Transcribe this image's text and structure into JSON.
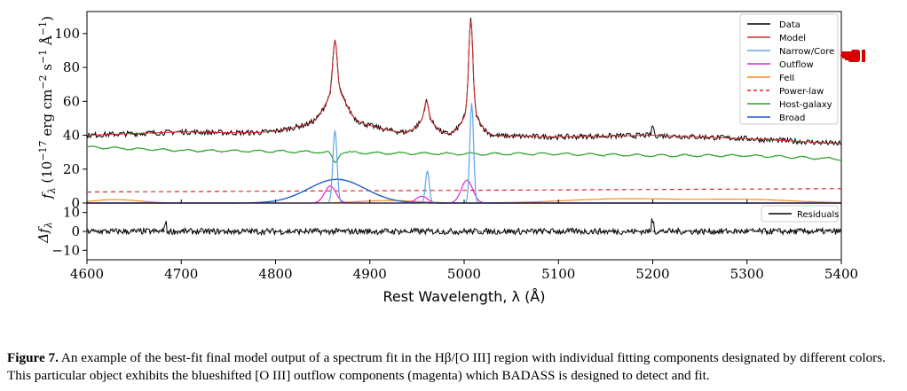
{
  "chart_data": [
    {
      "type": "line",
      "panel": "main",
      "xlim": [
        4600,
        5400
      ],
      "ylim": [
        0,
        113
      ],
      "ylabel": "f_λ (10^−17 erg cm^−2 s^−1 Å^−1)",
      "ylabel_parts": {
        "pre": "f",
        "sub": "λ",
        "mid1": " (10",
        "exp1": "−17",
        "mid2": " erg cm",
        "exp2": "−2",
        "mid3": " s",
        "exp3": "−1",
        "mid4": " Å",
        "exp4": "−1",
        "post": ")"
      },
      "yticks": [
        0,
        20,
        40,
        60,
        80,
        100
      ],
      "ytick_labels": [
        "0",
        "20",
        "40",
        "60",
        "80",
        "100"
      ],
      "legend": {
        "position": "top-right",
        "entries": [
          {
            "name": "Data",
            "color": "#000000",
            "dash": "solid"
          },
          {
            "name": "Model",
            "color": "#d62728",
            "dash": "solid"
          },
          {
            "name": "Narrow/Core",
            "color": "#5da5e8",
            "dash": "solid"
          },
          {
            "name": "Outflow",
            "color": "#e024d8",
            "dash": "solid"
          },
          {
            "name": "FeII",
            "color": "#f28a1e",
            "dash": "solid"
          },
          {
            "name": "Power-law",
            "color": "#d62728",
            "dash": "dashed"
          },
          {
            "name": "Host-galaxy",
            "color": "#2ca02c",
            "dash": "solid"
          },
          {
            "name": "Broad",
            "color": "#1f5fc8",
            "dash": "solid"
          }
        ]
      },
      "series": [
        {
          "key": "data",
          "color": "#000000",
          "continuum": [
            [
              4600,
              40
            ],
            [
              4700,
              42
            ],
            [
              4800,
              41
            ],
            [
              4900,
              41
            ],
            [
              5000,
              40
            ],
            [
              5100,
              39
            ],
            [
              5200,
              40
            ],
            [
              5300,
              38
            ],
            [
              5400,
              35
            ]
          ]
        },
        {
          "key": "host",
          "color": "#2ca02c",
          "continuum": [
            [
              4600,
              33
            ],
            [
              4650,
              32
            ],
            [
              4700,
              31
            ],
            [
              4800,
              30.5
            ],
            [
              4860,
              30
            ],
            [
              4900,
              29.5
            ],
            [
              5000,
              29
            ],
            [
              5100,
              29
            ],
            [
              5200,
              28
            ],
            [
              5300,
              28
            ],
            [
              5400,
              26
            ]
          ]
        },
        {
          "key": "powerlaw",
          "color": "#d62728",
          "continuum": [
            [
              4600,
              6.5
            ],
            [
              5400,
              8.5
            ]
          ]
        },
        {
          "key": "broad",
          "color": "#1f5fc8",
          "gaussians": [
            {
              "center": 4865,
              "amp": 14,
              "sigma": 30
            }
          ]
        },
        {
          "key": "narrow",
          "color": "#5da5e8",
          "gaussians": [
            {
              "center": 4863,
              "amp": 43,
              "sigma": 2.2
            },
            {
              "center": 4961,
              "amp": 19,
              "sigma": 2.0
            },
            {
              "center": 5008,
              "amp": 59,
              "sigma": 2.0
            }
          ]
        },
        {
          "key": "outflow",
          "color": "#e024d8",
          "gaussians": [
            {
              "center": 4858,
              "amp": 10,
              "sigma": 6
            },
            {
              "center": 4955,
              "amp": 4,
              "sigma": 6
            },
            {
              "center": 5003,
              "amp": 13.5,
              "sigma": 6
            }
          ]
        },
        {
          "key": "feii",
          "color": "#f28a1e",
          "gaussians": [
            {
              "center": 4630,
              "amp": 2,
              "sigma": 25
            },
            {
              "center": 4920,
              "amp": 1.5,
              "sigma": 30
            },
            {
              "center": 5170,
              "amp": 2.5,
              "sigma": 60
            },
            {
              "center": 5300,
              "amp": 2,
              "sigma": 50
            }
          ]
        }
      ],
      "peaks": [
        {
          "x": 4863,
          "y": 96
        },
        {
          "x": 4960,
          "y": 60
        },
        {
          "x": 5007,
          "y": 108
        }
      ]
    },
    {
      "type": "line",
      "panel": "residuals",
      "xlim": [
        4600,
        5400
      ],
      "ylim": [
        -15,
        15
      ],
      "ylabel": "Δf_λ",
      "ylabel_parts": {
        "pre": "Δf",
        "sub": "λ"
      },
      "yticks": [
        -10,
        0,
        10
      ],
      "ytick_labels": [
        "−10",
        "0",
        "10"
      ],
      "xticks": [
        4600,
        4700,
        4800,
        4900,
        5000,
        5100,
        5200,
        5300,
        5400
      ],
      "xtick_labels": [
        "4600",
        "4700",
        "4800",
        "4900",
        "5000",
        "5100",
        "5200",
        "5300",
        "5400"
      ],
      "xlabel": "Rest Wavelength, λ (Å)",
      "legend": {
        "position": "top-right",
        "entries": [
          {
            "name": "Residuals",
            "color": "#000000",
            "dash": "solid"
          }
        ]
      },
      "series": [
        {
          "key": "residuals",
          "color": "#000000",
          "noise": 1.5
        }
      ]
    }
  ],
  "caption": {
    "label": "Figure 7.",
    "text": "An example of the best-fit final model output of a spectrum fit in the Hβ/[O III] region with individual fitting components designated by different colors. This particular object exhibits the blueshifted [O III] outflow components (magenta) which BADASS is designed to detect and fit."
  },
  "pointer_icon": "pointing-hand-icon",
  "pointer_color": "#d60000"
}
